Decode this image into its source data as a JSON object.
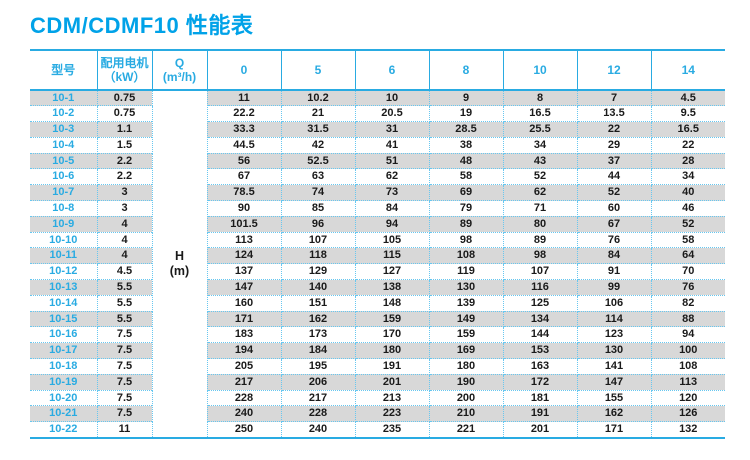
{
  "page": {
    "title": "CDM/CDMF10 性能表"
  },
  "colors": {
    "accent_cyan": "#29abe2",
    "title_cyan": "#00a2e8",
    "stripe_gray": "#d8d8d8",
    "dotted_blue": "#67c7f0",
    "data_text": "#1a1a1a"
  },
  "table": {
    "headers": {
      "model": "型号",
      "motor_line1": "配用电机",
      "motor_line2": "（kW）",
      "q_line1": "Q",
      "q_line2": "(m³/h)",
      "flow_columns": [
        "0",
        "5",
        "6",
        "8",
        "10",
        "12",
        "14"
      ]
    },
    "h_label_line1": "H",
    "h_label_line2": "(m)",
    "rows": [
      {
        "model": "10-1",
        "kw": "0.75",
        "values": [
          "11",
          "10.2",
          "10",
          "9",
          "8",
          "7",
          "4.5"
        ]
      },
      {
        "model": "10-2",
        "kw": "0.75",
        "values": [
          "22.2",
          "21",
          "20.5",
          "19",
          "16.5",
          "13.5",
          "9.5"
        ]
      },
      {
        "model": "10-3",
        "kw": "1.1",
        "values": [
          "33.3",
          "31.5",
          "31",
          "28.5",
          "25.5",
          "22",
          "16.5"
        ]
      },
      {
        "model": "10-4",
        "kw": "1.5",
        "values": [
          "44.5",
          "42",
          "41",
          "38",
          "34",
          "29",
          "22"
        ]
      },
      {
        "model": "10-5",
        "kw": "2.2",
        "values": [
          "56",
          "52.5",
          "51",
          "48",
          "43",
          "37",
          "28"
        ]
      },
      {
        "model": "10-6",
        "kw": "2.2",
        "values": [
          "67",
          "63",
          "62",
          "58",
          "52",
          "44",
          "34"
        ]
      },
      {
        "model": "10-7",
        "kw": "3",
        "values": [
          "78.5",
          "74",
          "73",
          "69",
          "62",
          "52",
          "40"
        ]
      },
      {
        "model": "10-8",
        "kw": "3",
        "values": [
          "90",
          "85",
          "84",
          "79",
          "71",
          "60",
          "46"
        ]
      },
      {
        "model": "10-9",
        "kw": "4",
        "values": [
          "101.5",
          "96",
          "94",
          "89",
          "80",
          "67",
          "52"
        ]
      },
      {
        "model": "10-10",
        "kw": "4",
        "values": [
          "113",
          "107",
          "105",
          "98",
          "89",
          "76",
          "58"
        ]
      },
      {
        "model": "10-11",
        "kw": "4",
        "values": [
          "124",
          "118",
          "115",
          "108",
          "98",
          "84",
          "64"
        ]
      },
      {
        "model": "10-12",
        "kw": "4.5",
        "values": [
          "137",
          "129",
          "127",
          "119",
          "107",
          "91",
          "70"
        ]
      },
      {
        "model": "10-13",
        "kw": "5.5",
        "values": [
          "147",
          "140",
          "138",
          "130",
          "116",
          "99",
          "76"
        ]
      },
      {
        "model": "10-14",
        "kw": "5.5",
        "values": [
          "160",
          "151",
          "148",
          "139",
          "125",
          "106",
          "82"
        ]
      },
      {
        "model": "10-15",
        "kw": "5.5",
        "values": [
          "171",
          "162",
          "159",
          "149",
          "134",
          "114",
          "88"
        ]
      },
      {
        "model": "10-16",
        "kw": "7.5",
        "values": [
          "183",
          "173",
          "170",
          "159",
          "144",
          "123",
          "94"
        ]
      },
      {
        "model": "10-17",
        "kw": "7.5",
        "values": [
          "194",
          "184",
          "180",
          "169",
          "153",
          "130",
          "100"
        ]
      },
      {
        "model": "10-18",
        "kw": "7.5",
        "values": [
          "205",
          "195",
          "191",
          "180",
          "163",
          "141",
          "108"
        ]
      },
      {
        "model": "10-19",
        "kw": "7.5",
        "values": [
          "217",
          "206",
          "201",
          "190",
          "172",
          "147",
          "113"
        ]
      },
      {
        "model": "10-20",
        "kw": "7.5",
        "values": [
          "228",
          "217",
          "213",
          "200",
          "181",
          "155",
          "120"
        ]
      },
      {
        "model": "10-21",
        "kw": "7.5",
        "values": [
          "240",
          "228",
          "223",
          "210",
          "191",
          "162",
          "126"
        ]
      },
      {
        "model": "10-22",
        "kw": "11",
        "values": [
          "250",
          "240",
          "235",
          "221",
          "201",
          "171",
          "132"
        ]
      }
    ]
  }
}
